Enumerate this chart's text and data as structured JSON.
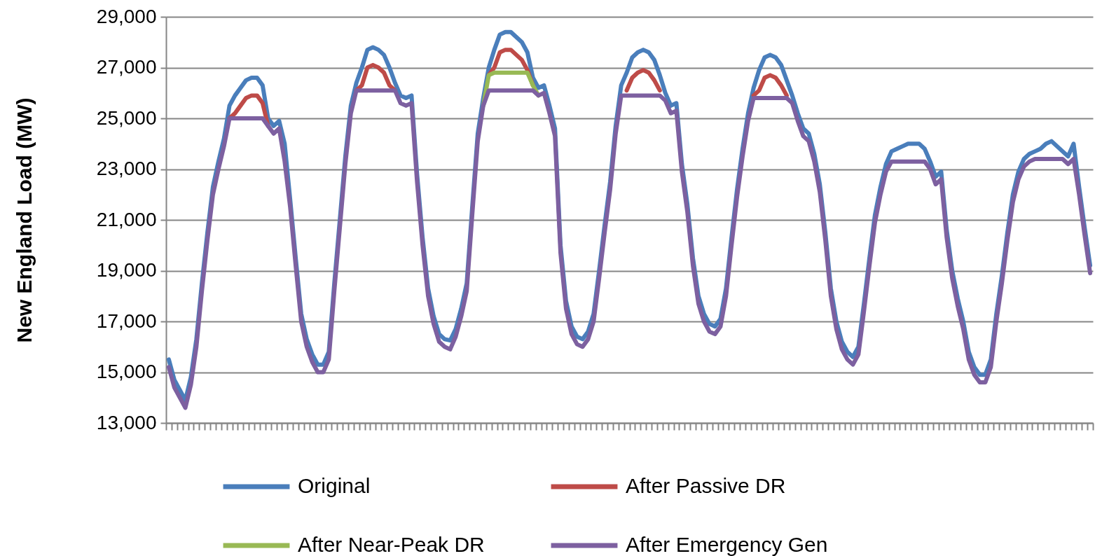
{
  "chart_data": {
    "type": "line",
    "ylabel": "New England  Load (MW)",
    "categories": [
      null,
      null,
      null,
      null,
      null,
      null,
      null,
      null,
      null,
      null,
      null,
      null,
      null,
      null,
      null,
      null,
      null,
      null,
      null,
      null,
      null,
      null,
      null,
      null,
      null,
      null,
      null,
      null,
      null,
      null,
      null,
      null,
      null,
      null,
      null,
      null,
      null,
      null,
      null,
      null,
      null,
      null,
      null,
      null,
      null,
      null,
      null,
      null,
      null,
      null,
      null,
      null,
      null,
      null,
      null,
      null,
      null,
      null,
      null,
      null,
      null,
      null,
      null,
      null,
      null,
      null,
      null,
      null,
      null,
      null,
      null,
      null,
      null,
      null,
      null,
      null,
      null,
      null,
      null,
      null,
      null,
      null,
      null,
      null,
      null,
      null,
      null,
      null,
      null,
      null,
      null,
      null,
      null,
      null,
      null,
      null,
      null,
      null,
      null,
      null,
      null,
      null,
      null,
      null,
      null,
      null,
      null,
      null,
      null,
      null,
      null,
      null,
      null,
      null,
      null,
      null,
      null,
      null,
      null,
      null,
      null,
      null,
      null,
      null,
      null,
      null,
      null,
      null,
      null,
      null,
      null,
      null,
      null,
      null,
      null,
      null,
      null,
      null,
      null,
      null,
      null,
      null,
      null,
      null,
      null,
      null,
      null,
      null,
      null,
      null,
      null,
      null,
      null,
      null,
      null,
      null,
      null,
      null,
      null,
      null,
      null,
      null,
      null,
      null,
      null,
      null,
      null,
      null
    ],
    "series": [
      {
        "name": "Original",
        "color": "#4a7ebb",
        "values": [
          15500,
          14700,
          14300,
          13900,
          14800,
          16300,
          18500,
          20500,
          22300,
          23300,
          24200,
          25500,
          25900,
          26200,
          26500,
          26600,
          26600,
          26300,
          25000,
          24700,
          24900,
          24000,
          21800,
          19500,
          17300,
          16300,
          15700,
          15300,
          15300,
          15800,
          18500,
          21000,
          23500,
          25500,
          26400,
          27000,
          27700,
          27800,
          27700,
          27500,
          27000,
          26400,
          25900,
          25800,
          25900,
          22800,
          20300,
          18300,
          17200,
          16500,
          16300,
          16250,
          16700,
          17500,
          18500,
          21500,
          24400,
          25800,
          27000,
          27700,
          28300,
          28400,
          28400,
          28200,
          28000,
          27600,
          26600,
          26200,
          26300,
          25500,
          24600,
          20000,
          17800,
          16800,
          16400,
          16300,
          16600,
          17300,
          19000,
          20800,
          22500,
          24700,
          26300,
          26800,
          27400,
          27600,
          27700,
          27600,
          27300,
          26700,
          26000,
          25500,
          25600,
          23200,
          21600,
          19500,
          18000,
          17300,
          16900,
          16800,
          17100,
          18300,
          20300,
          22200,
          23800,
          25200,
          26200,
          26900,
          27400,
          27500,
          27400,
          27100,
          26500,
          25900,
          25200,
          24600,
          24400,
          23600,
          22400,
          20500,
          18300,
          17000,
          16200,
          15800,
          15600,
          16000,
          17700,
          19500,
          21200,
          22300,
          23200,
          23700,
          23800,
          23900,
          24000,
          24000,
          24000,
          23800,
          23300,
          22700,
          22900,
          20600,
          19000,
          17900,
          17000,
          15800,
          15200,
          14900,
          14900,
          15500,
          17300,
          18800,
          20500,
          22000,
          22900,
          23400,
          23600,
          23700,
          23800,
          24000,
          24100,
          23900,
          23700,
          23500,
          24000,
          22300,
          20700,
          19200
        ]
      },
      {
        "name": "After Passive DR",
        "color": "#be4b48",
        "values": [
          null,
          null,
          null,
          null,
          null,
          null,
          null,
          null,
          null,
          null,
          null,
          25000,
          25200,
          25500,
          25800,
          25900,
          25900,
          25600,
          24700,
          null,
          null,
          null,
          null,
          null,
          null,
          null,
          null,
          null,
          null,
          null,
          null,
          null,
          null,
          null,
          26100,
          26300,
          27000,
          27100,
          27000,
          26800,
          26300,
          26100,
          null,
          null,
          null,
          null,
          null,
          null,
          null,
          null,
          null,
          null,
          null,
          null,
          null,
          null,
          null,
          null,
          26700,
          27000,
          27600,
          27700,
          27700,
          27500,
          27300,
          26900,
          26300,
          null,
          null,
          null,
          null,
          null,
          null,
          null,
          null,
          null,
          null,
          null,
          null,
          null,
          null,
          null,
          null,
          26100,
          26600,
          26800,
          26900,
          26800,
          26500,
          26100,
          null,
          null,
          null,
          null,
          null,
          null,
          null,
          null,
          null,
          null,
          null,
          null,
          null,
          null,
          null,
          null,
          25900,
          26100,
          26600,
          26700,
          26600,
          26300,
          25900,
          null,
          null,
          null,
          null,
          null,
          null,
          null,
          null,
          null,
          null,
          null,
          null,
          null,
          null,
          null,
          null,
          null,
          null,
          null,
          null,
          null,
          null,
          null,
          null,
          null,
          null,
          null,
          null,
          null,
          null,
          null,
          null,
          null,
          null,
          null,
          null,
          null,
          null,
          null,
          null,
          null,
          null,
          null,
          null,
          null,
          null,
          null,
          null,
          null,
          null,
          null,
          null,
          null,
          null,
          null
        ]
      },
      {
        "name": "After Near-Peak DR",
        "color": "#98b954",
        "values": [
          null,
          null,
          null,
          null,
          null,
          null,
          null,
          null,
          null,
          null,
          null,
          null,
          null,
          null,
          null,
          null,
          null,
          null,
          null,
          null,
          null,
          null,
          null,
          null,
          null,
          null,
          null,
          null,
          null,
          null,
          null,
          null,
          null,
          null,
          null,
          null,
          null,
          null,
          null,
          null,
          null,
          null,
          null,
          null,
          null,
          null,
          null,
          null,
          null,
          null,
          null,
          null,
          null,
          null,
          null,
          null,
          null,
          25500,
          26700,
          26800,
          26800,
          26800,
          26800,
          26800,
          26800,
          26800,
          26300,
          25900,
          null,
          null,
          null,
          null,
          null,
          null,
          null,
          null,
          null,
          null,
          null,
          null,
          null,
          null,
          null,
          null,
          null,
          null,
          null,
          null,
          null,
          null,
          null,
          null,
          null,
          null,
          null,
          null,
          null,
          null,
          null,
          null,
          null,
          null,
          null,
          null,
          null,
          null,
          null,
          null,
          null,
          null,
          null,
          null,
          null,
          null,
          null,
          null,
          null,
          null,
          null,
          null,
          null,
          null,
          null,
          null,
          null,
          null,
          null,
          null,
          null,
          null,
          null,
          null,
          null,
          null,
          null,
          null,
          null,
          null,
          null,
          null,
          null,
          null,
          null,
          null,
          null,
          null,
          null,
          null,
          null,
          null,
          null,
          null,
          null,
          null,
          null,
          null,
          null,
          null,
          null,
          null,
          null,
          null,
          null,
          null,
          null,
          null,
          null,
          null
        ]
      },
      {
        "name": "After Emergency Gen",
        "color": "#7d60a0",
        "values": [
          15200,
          14400,
          14000,
          13600,
          14500,
          16000,
          18200,
          20200,
          22000,
          23000,
          23900,
          25000,
          25000,
          25000,
          25000,
          25000,
          25000,
          25000,
          24700,
          24400,
          24600,
          23300,
          21500,
          19200,
          17000,
          16000,
          15400,
          15000,
          15000,
          15500,
          18200,
          20700,
          23200,
          25200,
          26100,
          26100,
          26100,
          26100,
          26100,
          26100,
          26100,
          26100,
          25600,
          25500,
          25600,
          22500,
          20000,
          18000,
          16900,
          16200,
          16000,
          15900,
          16400,
          17200,
          18200,
          21200,
          24100,
          25500,
          26100,
          26100,
          26100,
          26100,
          26100,
          26100,
          26100,
          26100,
          26100,
          25900,
          26000,
          25200,
          24300,
          19700,
          17500,
          16500,
          16100,
          16000,
          16300,
          17000,
          18700,
          20500,
          22200,
          24400,
          25900,
          25900,
          25900,
          25900,
          25900,
          25900,
          25900,
          25900,
          25700,
          25200,
          25300,
          22900,
          21300,
          19200,
          17700,
          17000,
          16600,
          16500,
          16800,
          18000,
          20000,
          21900,
          23500,
          24900,
          25800,
          25800,
          25800,
          25800,
          25800,
          25800,
          25800,
          25600,
          24900,
          24300,
          24100,
          23300,
          22100,
          20200,
          18000,
          16700,
          15900,
          15500,
          15300,
          15700,
          17400,
          19200,
          20900,
          22000,
          22900,
          23300,
          23300,
          23300,
          23300,
          23300,
          23300,
          23300,
          23000,
          22400,
          22600,
          20300,
          18700,
          17600,
          16700,
          15500,
          14900,
          14600,
          14600,
          15200,
          17000,
          18500,
          20200,
          21700,
          22600,
          23100,
          23300,
          23400,
          23400,
          23400,
          23400,
          23400,
          23400,
          23200,
          23400,
          22000,
          20400,
          18900
        ]
      }
    ],
    "ylim": [
      13000,
      29000
    ],
    "yticks": [
      {
        "value": 13000,
        "label": "13,000"
      },
      {
        "value": 15000,
        "label": "15,000"
      },
      {
        "value": 17000,
        "label": "17,000"
      },
      {
        "value": 19000,
        "label": "19,000"
      },
      {
        "value": 21000,
        "label": "21,000"
      },
      {
        "value": 23000,
        "label": "23,000"
      },
      {
        "value": 25000,
        "label": "25,000"
      },
      {
        "value": 27000,
        "label": "27,000"
      },
      {
        "value": 29000,
        "label": "29,000"
      }
    ],
    "grid": "y",
    "legend": "bottom"
  }
}
